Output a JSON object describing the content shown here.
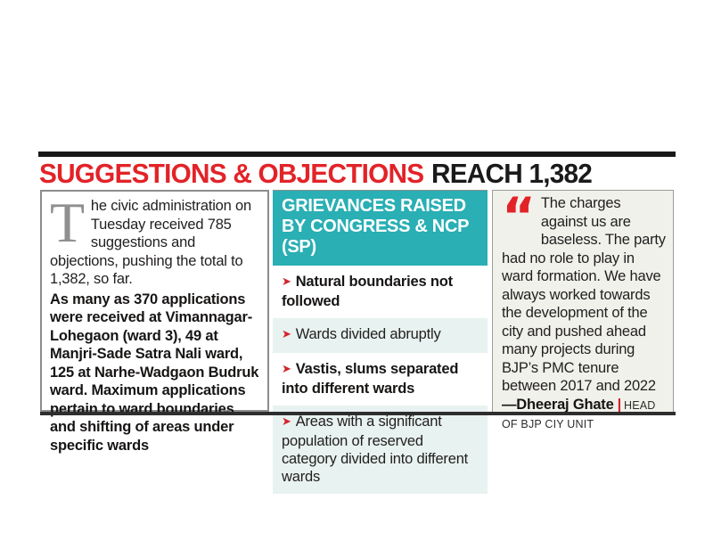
{
  "header": {
    "title_red": "SUGGESTIONS & OBJECTIONS",
    "title_black": "REACH 1,382"
  },
  "left_column": {
    "dropcap": "T",
    "para_regular": "he civic administration on Tuesday received 785 suggestions and objections, pushing the total to 1,382, so far.",
    "para_bold": "As many as 370 applications were received at Vimannagar-Lohegaon (ward 3), 49 at Manjri-Sade Satra Nali ward, 125 at Narhe-Wadgaon Budruk ward. Maximum applications pertain to ward boundaries and shifting of areas under specific wards"
  },
  "middle_column": {
    "header": "GRIEVANCES RAISED BY CONGRESS & NCP (SP)",
    "bullet_icon": "➤",
    "items": [
      {
        "text": "Natural boundaries not followed"
      },
      {
        "text": "Wards divided abruptly"
      },
      {
        "text": "Vastis, slums separated into different wards"
      },
      {
        "text": "Areas with a significant population of reserved category divided into different wards"
      }
    ]
  },
  "right_column": {
    "quote_mark": "“",
    "quote": "The charges against us are baseless. The party had no role to play in ward formation. We have always worked towards the development of the city and pushed ahead many projects during BJP’s PMC tenure between 2017 and 2022",
    "attribution": "—Dheeraj Ghate",
    "separator": "|",
    "role": "HEAD OF BJP CIY UNIT"
  },
  "colors": {
    "accent_red": "#e22328",
    "teal_header": "#29afb4",
    "teal_band": "#e8f2f0",
    "quote_panel_bg": "#f1f1ec",
    "rule_black": "#191919"
  }
}
